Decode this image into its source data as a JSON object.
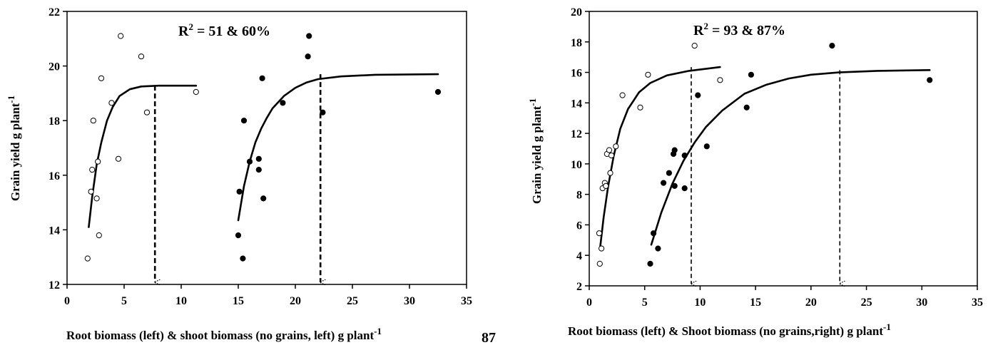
{
  "page_number": "87",
  "chart_data": [
    {
      "type": "scatter",
      "xlabel": "Root biomass (left) & shoot biomass (no grains, left) g plant",
      "xlabel_sup": "-1",
      "ylabel": "Grain yield g plant",
      "ylabel_sup": "-1",
      "annotation_r2": "R",
      "annotation_r2_sup": "2",
      "annotation_r2_rest": " = 51 & 60%",
      "xlim": [
        0,
        35
      ],
      "ylim": [
        12,
        22
      ],
      "x_ticks": [
        "0",
        "5",
        "10",
        "15",
        "20",
        "25",
        "30",
        "35"
      ],
      "y_ticks": [
        "12",
        "14",
        "16",
        "18",
        "20",
        "22"
      ],
      "grid": false,
      "series": [
        {
          "marker": "open",
          "points": [
            [
              1.8,
              12.95
            ],
            [
              2.1,
              15.4
            ],
            [
              2.2,
              16.2
            ],
            [
              2.3,
              18.0
            ],
            [
              2.6,
              15.15
            ],
            [
              2.7,
              16.5
            ],
            [
              2.8,
              13.8
            ],
            [
              3.0,
              19.55
            ],
            [
              3.9,
              18.65
            ],
            [
              4.5,
              16.6
            ],
            [
              4.7,
              21.1
            ],
            [
              6.5,
              20.35
            ],
            [
              7.0,
              18.3
            ],
            [
              11.3,
              19.05
            ]
          ],
          "fit": [
            [
              1.9,
              14.1
            ],
            [
              2.2,
              15.2
            ],
            [
              2.6,
              16.4
            ],
            [
              3.0,
              17.2
            ],
            [
              3.5,
              18.0
            ],
            [
              4.0,
              18.5
            ],
            [
              4.6,
              18.9
            ],
            [
              5.5,
              19.15
            ],
            [
              6.5,
              19.25
            ],
            [
              8.0,
              19.28
            ],
            [
              11.3,
              19.28
            ]
          ],
          "cutoff_x": 7.7
        },
        {
          "marker": "filled",
          "points": [
            [
              15.0,
              13.8
            ],
            [
              15.1,
              15.4
            ],
            [
              15.4,
              12.95
            ],
            [
              15.5,
              18.0
            ],
            [
              16.0,
              16.5
            ],
            [
              16.8,
              16.2
            ],
            [
              16.8,
              16.6
            ],
            [
              17.1,
              19.55
            ],
            [
              17.2,
              15.15
            ],
            [
              18.9,
              18.65
            ],
            [
              21.1,
              20.35
            ],
            [
              21.2,
              21.1
            ],
            [
              22.4,
              18.3
            ],
            [
              32.5,
              19.05
            ]
          ],
          "fit": [
            [
              15.0,
              14.35
            ],
            [
              15.5,
              15.6
            ],
            [
              16.0,
              16.5
            ],
            [
              16.5,
              17.2
            ],
            [
              17.0,
              17.7
            ],
            [
              17.5,
              18.1
            ],
            [
              18.0,
              18.45
            ],
            [
              19.0,
              18.9
            ],
            [
              20.0,
              19.2
            ],
            [
              21.0,
              19.4
            ],
            [
              22.0,
              19.52
            ],
            [
              24.0,
              19.62
            ],
            [
              27.0,
              19.68
            ],
            [
              32.5,
              19.7
            ]
          ],
          "cutoff_x": 22.2
        }
      ]
    },
    {
      "type": "scatter",
      "xlabel": "Root biomass (left) & Shoot biomass (no grains,right)  g plant",
      "xlabel_sup": "-1",
      "ylabel": "Grain yield  g plant",
      "ylabel_sup": "-1",
      "annotation_r2": "R",
      "annotation_r2_sup": "2",
      "annotation_r2_rest": " = 93 & 87%",
      "xlim": [
        0,
        35
      ],
      "ylim": [
        2,
        20
      ],
      "x_ticks": [
        "0",
        "5",
        "10",
        "15",
        "20",
        "25",
        "30",
        "35"
      ],
      "y_ticks": [
        "2",
        "4",
        "6",
        "8",
        "10",
        "12",
        "14",
        "16",
        "18",
        "20"
      ],
      "grid": false,
      "series": [
        {
          "marker": "open",
          "points": [
            [
              0.9,
              5.45
            ],
            [
              0.95,
              3.45
            ],
            [
              1.1,
              4.45
            ],
            [
              1.2,
              8.4
            ],
            [
              1.4,
              8.75
            ],
            [
              1.5,
              8.55
            ],
            [
              1.6,
              10.65
            ],
            [
              1.8,
              10.9
            ],
            [
              1.9,
              9.4
            ],
            [
              2.0,
              10.55
            ],
            [
              2.4,
              11.15
            ],
            [
              3.0,
              14.5
            ],
            [
              4.6,
              13.7
            ],
            [
              5.3,
              15.85
            ],
            [
              9.5,
              17.75
            ],
            [
              11.8,
              15.5
            ]
          ],
          "fit": [
            [
              1.0,
              4.6
            ],
            [
              1.3,
              6.5
            ],
            [
              1.7,
              8.5
            ],
            [
              2.2,
              10.5
            ],
            [
              2.8,
              12.3
            ],
            [
              3.5,
              13.6
            ],
            [
              4.5,
              14.7
            ],
            [
              5.5,
              15.3
            ],
            [
              7.0,
              15.8
            ],
            [
              9.0,
              16.1
            ],
            [
              11.8,
              16.35
            ]
          ],
          "cutoff_x": 9.2
        },
        {
          "marker": "filled",
          "points": [
            [
              5.5,
              3.45
            ],
            [
              5.8,
              5.45
            ],
            [
              6.2,
              4.45
            ],
            [
              6.7,
              8.75
            ],
            [
              7.2,
              9.4
            ],
            [
              7.6,
              10.65
            ],
            [
              7.7,
              10.9
            ],
            [
              7.7,
              8.55
            ],
            [
              8.6,
              8.4
            ],
            [
              8.6,
              10.55
            ],
            [
              9.8,
              14.5
            ],
            [
              10.6,
              11.15
            ],
            [
              14.2,
              13.7
            ],
            [
              14.6,
              15.85
            ],
            [
              21.9,
              17.75
            ],
            [
              30.7,
              15.5
            ]
          ],
          "fit": [
            [
              5.6,
              4.7
            ],
            [
              6.5,
              6.8
            ],
            [
              7.5,
              8.7
            ],
            [
              8.5,
              10.2
            ],
            [
              9.5,
              11.4
            ],
            [
              10.5,
              12.4
            ],
            [
              12.0,
              13.5
            ],
            [
              14.0,
              14.6
            ],
            [
              16.0,
              15.2
            ],
            [
              18.0,
              15.6
            ],
            [
              20.0,
              15.85
            ],
            [
              22.5,
              16.0
            ],
            [
              26.0,
              16.1
            ],
            [
              30.7,
              16.15
            ]
          ],
          "cutoff_x": 22.6
        }
      ]
    }
  ]
}
